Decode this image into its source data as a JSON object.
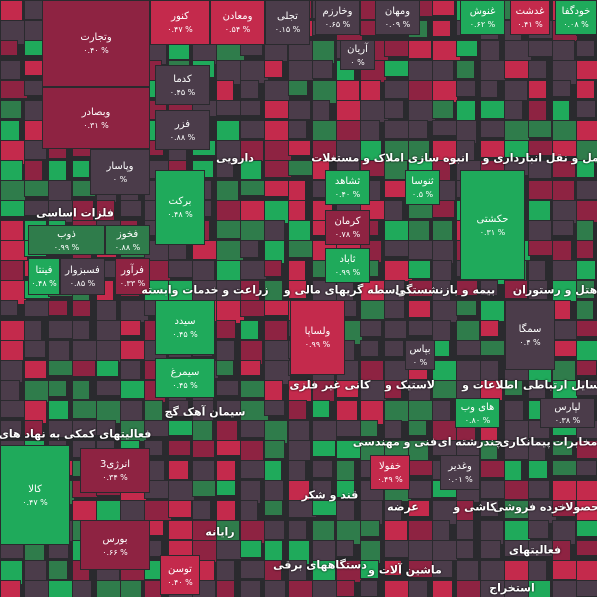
{
  "tiles": [
    {
      "name": "وتجارت",
      "change": "۰.۴۰ %"
    },
    {
      "name": "وبصادر",
      "change": "۰.۳۱ %"
    },
    {
      "name": "وپاسار",
      "change": "۰ %"
    },
    {
      "name": "فخوز",
      "change": "۰.۸۸ %"
    },
    {
      "name": "ذوب",
      "change": "۰.۹۹ %"
    },
    {
      "name": "فسبزوار",
      "change": "۰.۸۵ %"
    },
    {
      "name": "فینتا",
      "change": "۰.۴۸ %"
    },
    {
      "name": "فرآور",
      "change": "۰.۳۳ %"
    },
    {
      "name": "کنور",
      "change": "۰.۴۷ %"
    },
    {
      "name": "کدما",
      "change": "۰.۴۵ %"
    },
    {
      "name": "فزر",
      "change": "۰.۸۸ %"
    },
    {
      "name": "ومعادن",
      "change": "۰.۵۴ %"
    },
    {
      "name": "تجلی",
      "change": "۰.۱۵ %"
    },
    {
      "name": "وخارزم",
      "change": "۰.۶۵ %"
    },
    {
      "name": "ومهان",
      "change": "۰.۰۹ %"
    },
    {
      "name": "غنوش",
      "change": "۰.۶۲ %"
    },
    {
      "name": "غدشت",
      "change": "۰.۴۱ %"
    },
    {
      "name": "خودگفا",
      "change": "۰.۰۸ %"
    },
    {
      "name": "آریان",
      "change": "۰ %"
    },
    {
      "name": "برکت",
      "change": "۰.۴۸ %"
    },
    {
      "name": "ثشاهد",
      "change": "۰.۴۰ %"
    },
    {
      "name": "ثنوسا",
      "change": "۰.۵ %"
    },
    {
      "name": "کرمان",
      "change": "۰.۷۸ %"
    },
    {
      "name": "ثاباد",
      "change": "۰.۹۹ %"
    },
    {
      "name": "حکشتی",
      "change": "۰.۳۱ %"
    },
    {
      "name": "سیدد",
      "change": "۰.۴۵ %"
    },
    {
      "name": "سیمرغ",
      "change": "۰.۴۵ %"
    },
    {
      "name": "ولساپا",
      "change": "۰.۹۹ %"
    },
    {
      "name": "سمگا",
      "change": "۰.۴ %"
    },
    {
      "name": "بپاس",
      "change": "۰ %"
    },
    {
      "name": "های وب",
      "change": "۰.۸۰ %"
    },
    {
      "name": "لپارس",
      "change": "۰.۳۸ %"
    },
    {
      "name": "خفولا",
      "change": "۰.۴۹ %"
    },
    {
      "name": "وغدیر",
      "change": "۰.۰۱ %"
    },
    {
      "name": "انرژی3",
      "change": "۰.۳۴ %"
    },
    {
      "name": "کالا",
      "change": "۰.۴۷ %"
    },
    {
      "name": "بورس",
      "change": "۰.۶۶ %"
    },
    {
      "name": "توسن",
      "change": "۰.۴۰ %"
    }
  ],
  "sectors": [
    "فلزات اساسی",
    "دارویی",
    "انبوه سازی املاک و مستغلات",
    "حمل و نقل انبارداری و",
    "زراعت و خدمات وابسته",
    "واسطه گریهای مالی و",
    "بیمه و بازنشستگی",
    "هتل و رستوران",
    "فعالیتهای کمکی به نهاد های مالی",
    "سیمان آهک گچ",
    "کانی غیر فلزی",
    "لاستیک و",
    "اطلاعات و",
    "وسایل ارتباطی",
    "فنی و مهندسی",
    "چندرشته ای",
    "پیمانکاری",
    "مخابرات",
    "قند و شکر",
    "عرضه",
    "کاشی و",
    "خرده فروشی",
    "محصولات",
    "رایانه",
    "فعالیتهای",
    "دستگاههای برقی",
    "ماشین آلات و",
    "استخراج"
  ]
}
